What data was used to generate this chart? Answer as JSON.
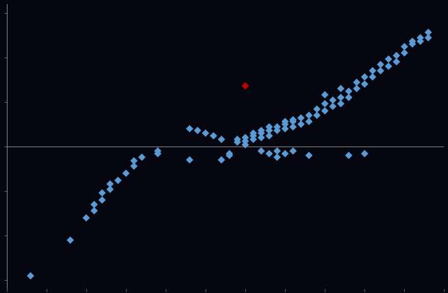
{
  "background_color": "#060610",
  "axis_color": "#888888",
  "blue_color": "#5b9bd5",
  "red_color": "#c00000",
  "marker": "D",
  "marker_size": 30,
  "xlim": [
    -20,
    35
  ],
  "ylim": [
    -160,
    160
  ],
  "points_blue": [
    [
      -17,
      -145
    ],
    [
      -12,
      -105
    ],
    [
      -10,
      -80
    ],
    [
      -9,
      -72
    ],
    [
      -9,
      -65
    ],
    [
      -8,
      -60
    ],
    [
      -8,
      -52
    ],
    [
      -7,
      -48
    ],
    [
      -7,
      -42
    ],
    [
      -6,
      -38
    ],
    [
      -5,
      -30
    ],
    [
      -4,
      -22
    ],
    [
      -4,
      -16
    ],
    [
      -3,
      -12
    ],
    [
      -1,
      -8
    ],
    [
      -1,
      -5
    ],
    [
      3,
      -15
    ],
    [
      7,
      -15
    ],
    [
      8,
      -10
    ],
    [
      8,
      -8
    ],
    [
      9,
      5
    ],
    [
      9,
      8
    ],
    [
      10,
      2
    ],
    [
      10,
      6
    ],
    [
      10,
      10
    ],
    [
      11,
      8
    ],
    [
      11,
      12
    ],
    [
      11,
      15
    ],
    [
      12,
      10
    ],
    [
      12,
      15
    ],
    [
      12,
      18
    ],
    [
      13,
      12
    ],
    [
      13,
      18
    ],
    [
      13,
      22
    ],
    [
      14,
      18
    ],
    [
      14,
      22
    ],
    [
      15,
      20
    ],
    [
      15,
      25
    ],
    [
      15,
      28
    ],
    [
      16,
      22
    ],
    [
      16,
      28
    ],
    [
      16,
      30
    ],
    [
      17,
      25
    ],
    [
      17,
      32
    ],
    [
      18,
      28
    ],
    [
      18,
      35
    ],
    [
      19,
      35
    ],
    [
      19,
      42
    ],
    [
      20,
      40
    ],
    [
      20,
      48
    ],
    [
      21,
      45
    ],
    [
      21,
      52
    ],
    [
      22,
      48
    ],
    [
      22,
      55
    ],
    [
      23,
      55
    ],
    [
      23,
      62
    ],
    [
      24,
      65
    ],
    [
      24,
      72
    ],
    [
      25,
      70
    ],
    [
      25,
      78
    ],
    [
      26,
      78
    ],
    [
      26,
      85
    ],
    [
      27,
      85
    ],
    [
      27,
      92
    ],
    [
      28,
      90
    ],
    [
      28,
      98
    ],
    [
      29,
      95
    ],
    [
      29,
      102
    ],
    [
      30,
      105
    ],
    [
      30,
      112
    ],
    [
      31,
      115
    ],
    [
      31,
      118
    ],
    [
      32,
      118
    ],
    [
      32,
      122
    ],
    [
      33,
      122
    ],
    [
      33,
      128
    ],
    [
      3,
      20
    ],
    [
      4,
      18
    ],
    [
      5,
      15
    ],
    [
      6,
      12
    ],
    [
      7,
      8
    ],
    [
      12,
      -5
    ],
    [
      13,
      -8
    ],
    [
      14,
      -12
    ],
    [
      14,
      -5
    ],
    [
      15,
      -8
    ],
    [
      16,
      -5
    ],
    [
      18,
      -10
    ],
    [
      20,
      58
    ],
    [
      22,
      65
    ],
    [
      23,
      -10
    ],
    [
      25,
      -8
    ]
  ],
  "points_red": [
    [
      10,
      68
    ]
  ]
}
